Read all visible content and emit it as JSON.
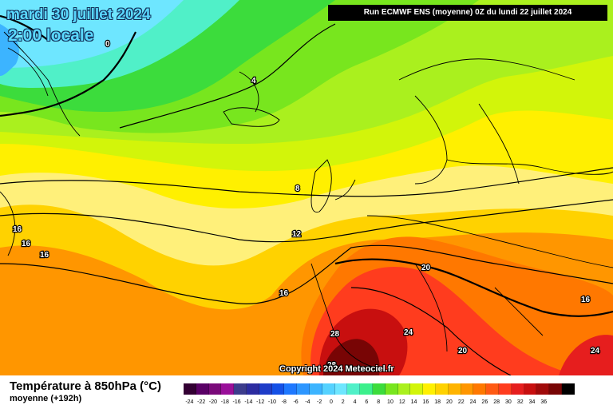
{
  "header": {
    "date": "mardi 30 juillet 2024",
    "time": "2:00 locale",
    "run": "Run ECMWF ENS (moyenne) 0Z du lundi 22 juillet 2024"
  },
  "map": {
    "copyright": "Copyright 2024 Meteociel.fr",
    "isotherm_labels": [
      "0",
      "4",
      "8",
      "12",
      "16",
      "16",
      "16",
      "16",
      "16",
      "20",
      "20",
      "24",
      "24",
      "28",
      "28"
    ],
    "colors": {
      "cold": "#5fdcff",
      "cool": "#4fd38c",
      "mild": "#b8f21a",
      "warm": "#ffe600",
      "hot": "#ff9a00",
      "very_hot": "#ff3b1f",
      "extreme": "#8a0a0a"
    }
  },
  "footer": {
    "title": "Température à 850hPa (°C)",
    "subtitle": "moyenne   (+192h)"
  },
  "legend": {
    "labels": [
      "-24",
      "-22",
      "-20",
      "-18",
      "-16",
      "-14",
      "-12",
      "-10",
      "-8",
      "-6",
      "-4",
      "-2",
      "0",
      "2",
      "4",
      "6",
      "8",
      "10",
      "12",
      "14",
      "16",
      "18",
      "20",
      "22",
      "24",
      "26",
      "28",
      "30",
      "32",
      "34",
      "36"
    ],
    "colors": [
      "#330033",
      "#5a0066",
      "#7a0a7a",
      "#990f99",
      "#3c3c8c",
      "#2c2ca0",
      "#1e3cc8",
      "#1450e6",
      "#1e78ff",
      "#2d96ff",
      "#3cb4ff",
      "#55d2ff",
      "#6ee6ff",
      "#50f0c8",
      "#3cf08c",
      "#3cdc3c",
      "#78e61e",
      "#aaf01e",
      "#d2f50a",
      "#fff000",
      "#ffd200",
      "#ffb400",
      "#ff9600",
      "#ff7800",
      "#ff5a14",
      "#ff3c1e",
      "#e61e1e",
      "#c80f0f",
      "#a00a0a",
      "#780505",
      "#000000"
    ]
  }
}
